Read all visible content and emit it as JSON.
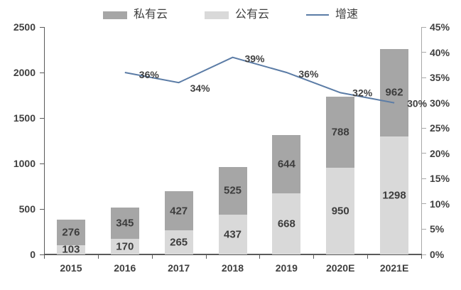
{
  "legend": {
    "items": [
      {
        "label": "私有云",
        "type": "bar-swatch",
        "color": "#a6a6a6"
      },
      {
        "label": "公有云",
        "type": "bar-swatch",
        "color": "#d9d9d9"
      },
      {
        "label": "增速",
        "type": "line-swatch",
        "color": "#5b7ca6"
      }
    ]
  },
  "chart_data": {
    "type": "bar",
    "subtype": "stacked-bars-with-line-overlay",
    "categories": [
      "2015",
      "2016",
      "2017",
      "2018",
      "2019",
      "2020E",
      "2021E"
    ],
    "series": [
      {
        "name": "公有云",
        "type": "bar",
        "stack": true,
        "color": "#d9d9d9",
        "values": [
          103,
          170,
          265,
          437,
          668,
          950,
          1298
        ]
      },
      {
        "name": "私有云",
        "type": "bar",
        "stack": true,
        "color": "#a6a6a6",
        "values": [
          276,
          345,
          427,
          525,
          644,
          788,
          962
        ]
      },
      {
        "name": "增速",
        "type": "line",
        "axis": "right",
        "color": "#5b7ca6",
        "values": [
          null,
          36,
          34,
          39,
          36,
          32,
          30
        ],
        "point_labels": [
          "",
          "36%",
          "34%",
          "39%",
          "36%",
          "32%",
          "30%"
        ]
      }
    ],
    "left_axis": {
      "min": 0,
      "max": 2500,
      "step": 500,
      "tick_labels": [
        "0",
        "500",
        "1000",
        "1500",
        "2000",
        "2500"
      ]
    },
    "right_axis": {
      "min": 0,
      "max": 45,
      "step": 5,
      "tick_labels": [
        "0%",
        "5%",
        "10%",
        "15%",
        "20%",
        "25%",
        "30%",
        "35%",
        "40%",
        "45%"
      ]
    },
    "grid": false,
    "legend_position": "top"
  },
  "colors": {
    "axis_text": "#404040",
    "axis_line_dark": "#5a5a5a",
    "axis_line_light": "#a8a8a8",
    "segment_label": "#3d3d3d"
  }
}
